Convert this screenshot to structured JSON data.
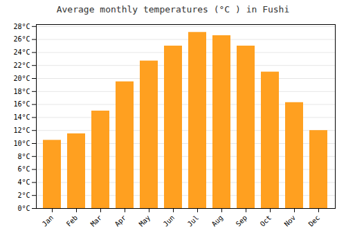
{
  "chart_data": {
    "type": "bar",
    "title": "Average monthly temperatures (°C ) in Fushi",
    "categories": [
      "Jan",
      "Feb",
      "Mar",
      "Apr",
      "May",
      "Jun",
      "Jul",
      "Aug",
      "Sep",
      "Oct",
      "Nov",
      "Dec"
    ],
    "values": [
      10.5,
      11.5,
      15.0,
      19.5,
      22.7,
      25.0,
      27.1,
      26.6,
      25.0,
      21.0,
      16.3,
      12.0
    ],
    "color": "#FFA020",
    "ylim": [
      0,
      28.3
    ],
    "yticks": [
      {
        "value": 0,
        "label": "0°C"
      },
      {
        "value": 2,
        "label": "2°C"
      },
      {
        "value": 4,
        "label": "4°C"
      },
      {
        "value": 6,
        "label": "6°C"
      },
      {
        "value": 8,
        "label": "8°C"
      },
      {
        "value": 10,
        "label": "10°C"
      },
      {
        "value": 12,
        "label": "12°C"
      },
      {
        "value": 14,
        "label": "14°C"
      },
      {
        "value": 16,
        "label": "16°C"
      },
      {
        "value": 18,
        "label": "18°C"
      },
      {
        "value": 20,
        "label": "20°C"
      },
      {
        "value": 22,
        "label": "22°C"
      },
      {
        "value": 24,
        "label": "24°C"
      },
      {
        "value": 26,
        "label": "26°C"
      },
      {
        "value": 28,
        "label": "28°C"
      }
    ],
    "grid": true
  }
}
